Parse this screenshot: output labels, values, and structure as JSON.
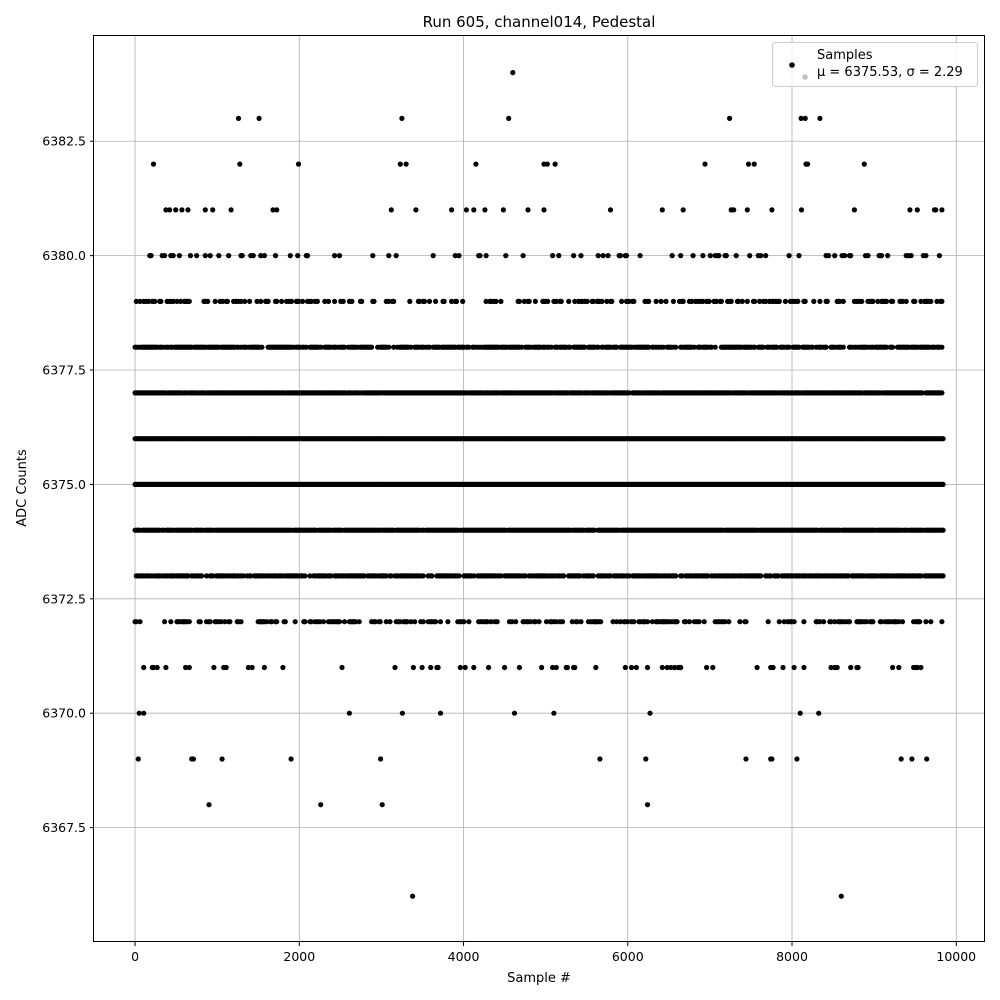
{
  "chart_data": {
    "type": "scatter",
    "title": "Run 605, channel014, Pedestal",
    "xlabel": "Sample #",
    "ylabel": "ADC Counts",
    "xlim": [
      -500,
      10350
    ],
    "ylim": [
      6365.0,
      6384.8
    ],
    "xticks": [
      0,
      2000,
      4000,
      6000,
      8000,
      10000
    ],
    "yticks": [
      6367.5,
      6370.0,
      6372.5,
      6375.0,
      6377.5,
      6380.0,
      6382.5
    ],
    "xtick_labels": [
      "0",
      "2000",
      "4000",
      "6000",
      "8000",
      "10000"
    ],
    "ytick_labels": [
      "6367.5",
      "6370.0",
      "6372.5",
      "6375.0",
      "6377.5",
      "6380.0",
      "6382.5"
    ],
    "grid": true,
    "legend": {
      "placement": "top-right",
      "entries": [
        {
          "label": "Samples",
          "stats": "μ = 6375.53, σ = 2.29"
        }
      ]
    },
    "series": [
      {
        "name": "Samples",
        "color": "#000000",
        "x_range": [
          0,
          9850
        ],
        "level_density": {
          "6366": 0,
          "6367": 0,
          "6368": 0,
          "6369": 0.004,
          "6370": 0.02,
          "6371": 0.12,
          "6372": 0.35,
          "6373": 0.75,
          "6374": 0.95,
          "6375": 1.0,
          "6376": 1.0,
          "6377": 0.95,
          "6378": 0.7,
          "6379": 0.35,
          "6380": 0.12,
          "6381": 0.03,
          "6382": 0.006,
          "6383": 0,
          "6384": 0
        },
        "outliers": [
          {
            "x": 40,
            "y": 6369
          },
          {
            "x": 50,
            "y": 6370
          },
          {
            "x": 690,
            "y": 6369
          },
          {
            "x": 710,
            "y": 6369
          },
          {
            "x": 900,
            "y": 6368
          },
          {
            "x": 1060,
            "y": 6369
          },
          {
            "x": 1260,
            "y": 6383
          },
          {
            "x": 1510,
            "y": 6383
          },
          {
            "x": 1900,
            "y": 6369
          },
          {
            "x": 1990,
            "y": 6382
          },
          {
            "x": 2260,
            "y": 6368
          },
          {
            "x": 2990,
            "y": 6369
          },
          {
            "x": 3010,
            "y": 6368
          },
          {
            "x": 3250,
            "y": 6383
          },
          {
            "x": 3380,
            "y": 6366
          },
          {
            "x": 4550,
            "y": 6383
          },
          {
            "x": 4600,
            "y": 6384
          },
          {
            "x": 5660,
            "y": 6369
          },
          {
            "x": 6220,
            "y": 6369
          },
          {
            "x": 6240,
            "y": 6368
          },
          {
            "x": 7240,
            "y": 6383
          },
          {
            "x": 7440,
            "y": 6369
          },
          {
            "x": 7740,
            "y": 6369
          },
          {
            "x": 8060,
            "y": 6369
          },
          {
            "x": 8110,
            "y": 6383
          },
          {
            "x": 8160,
            "y": 6383
          },
          {
            "x": 8340,
            "y": 6383
          },
          {
            "x": 8600,
            "y": 6366
          },
          {
            "x": 9330,
            "y": 6369
          },
          {
            "x": 9460,
            "y": 6369
          },
          {
            "x": 9640,
            "y": 6369
          },
          {
            "x": 3230,
            "y": 6382
          },
          {
            "x": 3300,
            "y": 6382
          },
          {
            "x": 4150,
            "y": 6382
          },
          {
            "x": 4980,
            "y": 6382
          },
          {
            "x": 5020,
            "y": 6382
          },
          {
            "x": 6940,
            "y": 6382
          },
          {
            "x": 7470,
            "y": 6382
          },
          {
            "x": 7540,
            "y": 6382
          },
          {
            "x": 8170,
            "y": 6382
          },
          {
            "x": 8880,
            "y": 6382
          }
        ]
      }
    ]
  }
}
